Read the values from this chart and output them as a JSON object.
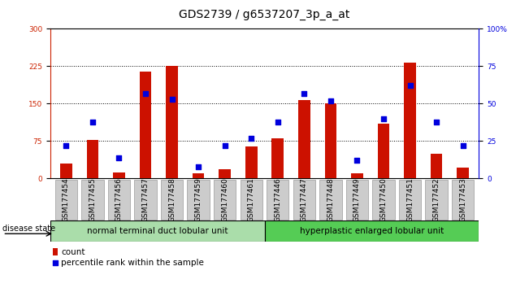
{
  "title": "GDS2739 / g6537207_3p_a_at",
  "samples": [
    "GSM177454",
    "GSM177455",
    "GSM177456",
    "GSM177457",
    "GSM177458",
    "GSM177459",
    "GSM177460",
    "GSM177461",
    "GSM177446",
    "GSM177447",
    "GSM177448",
    "GSM177449",
    "GSM177450",
    "GSM177451",
    "GSM177452",
    "GSM177453"
  ],
  "counts": [
    30,
    78,
    12,
    215,
    225,
    10,
    18,
    65,
    80,
    158,
    150,
    10,
    110,
    232,
    50,
    22
  ],
  "percentiles": [
    22,
    38,
    14,
    57,
    53,
    8,
    22,
    27,
    38,
    57,
    52,
    12,
    40,
    62,
    38,
    22
  ],
  "group1_label": "normal terminal duct lobular unit",
  "group2_label": "hyperplastic enlarged lobular unit",
  "group1_count": 8,
  "group2_count": 8,
  "bar_color": "#cc1100",
  "dot_color": "#0000dd",
  "left_axis_color": "#cc2200",
  "right_axis_color": "#0000dd",
  "left_ylim": [
    0,
    300
  ],
  "right_ylim": [
    0,
    100
  ],
  "left_yticks": [
    0,
    75,
    150,
    225,
    300
  ],
  "right_yticks": [
    0,
    25,
    50,
    75,
    100
  ],
  "right_yticklabels": [
    "0",
    "25",
    "50",
    "75",
    "100%"
  ],
  "grid_yticks": [
    75,
    150,
    225
  ],
  "background_color": "#ffffff",
  "group1_color": "#aaddaa",
  "group2_color": "#55cc55",
  "tick_bg_color": "#cccccc",
  "disease_state_label": "disease state",
  "legend_count_label": "count",
  "legend_percentile_label": "percentile rank within the sample",
  "title_fontsize": 10,
  "tick_fontsize": 6.5,
  "label_fontsize": 7.5,
  "bar_width": 0.45,
  "dot_size": 22
}
